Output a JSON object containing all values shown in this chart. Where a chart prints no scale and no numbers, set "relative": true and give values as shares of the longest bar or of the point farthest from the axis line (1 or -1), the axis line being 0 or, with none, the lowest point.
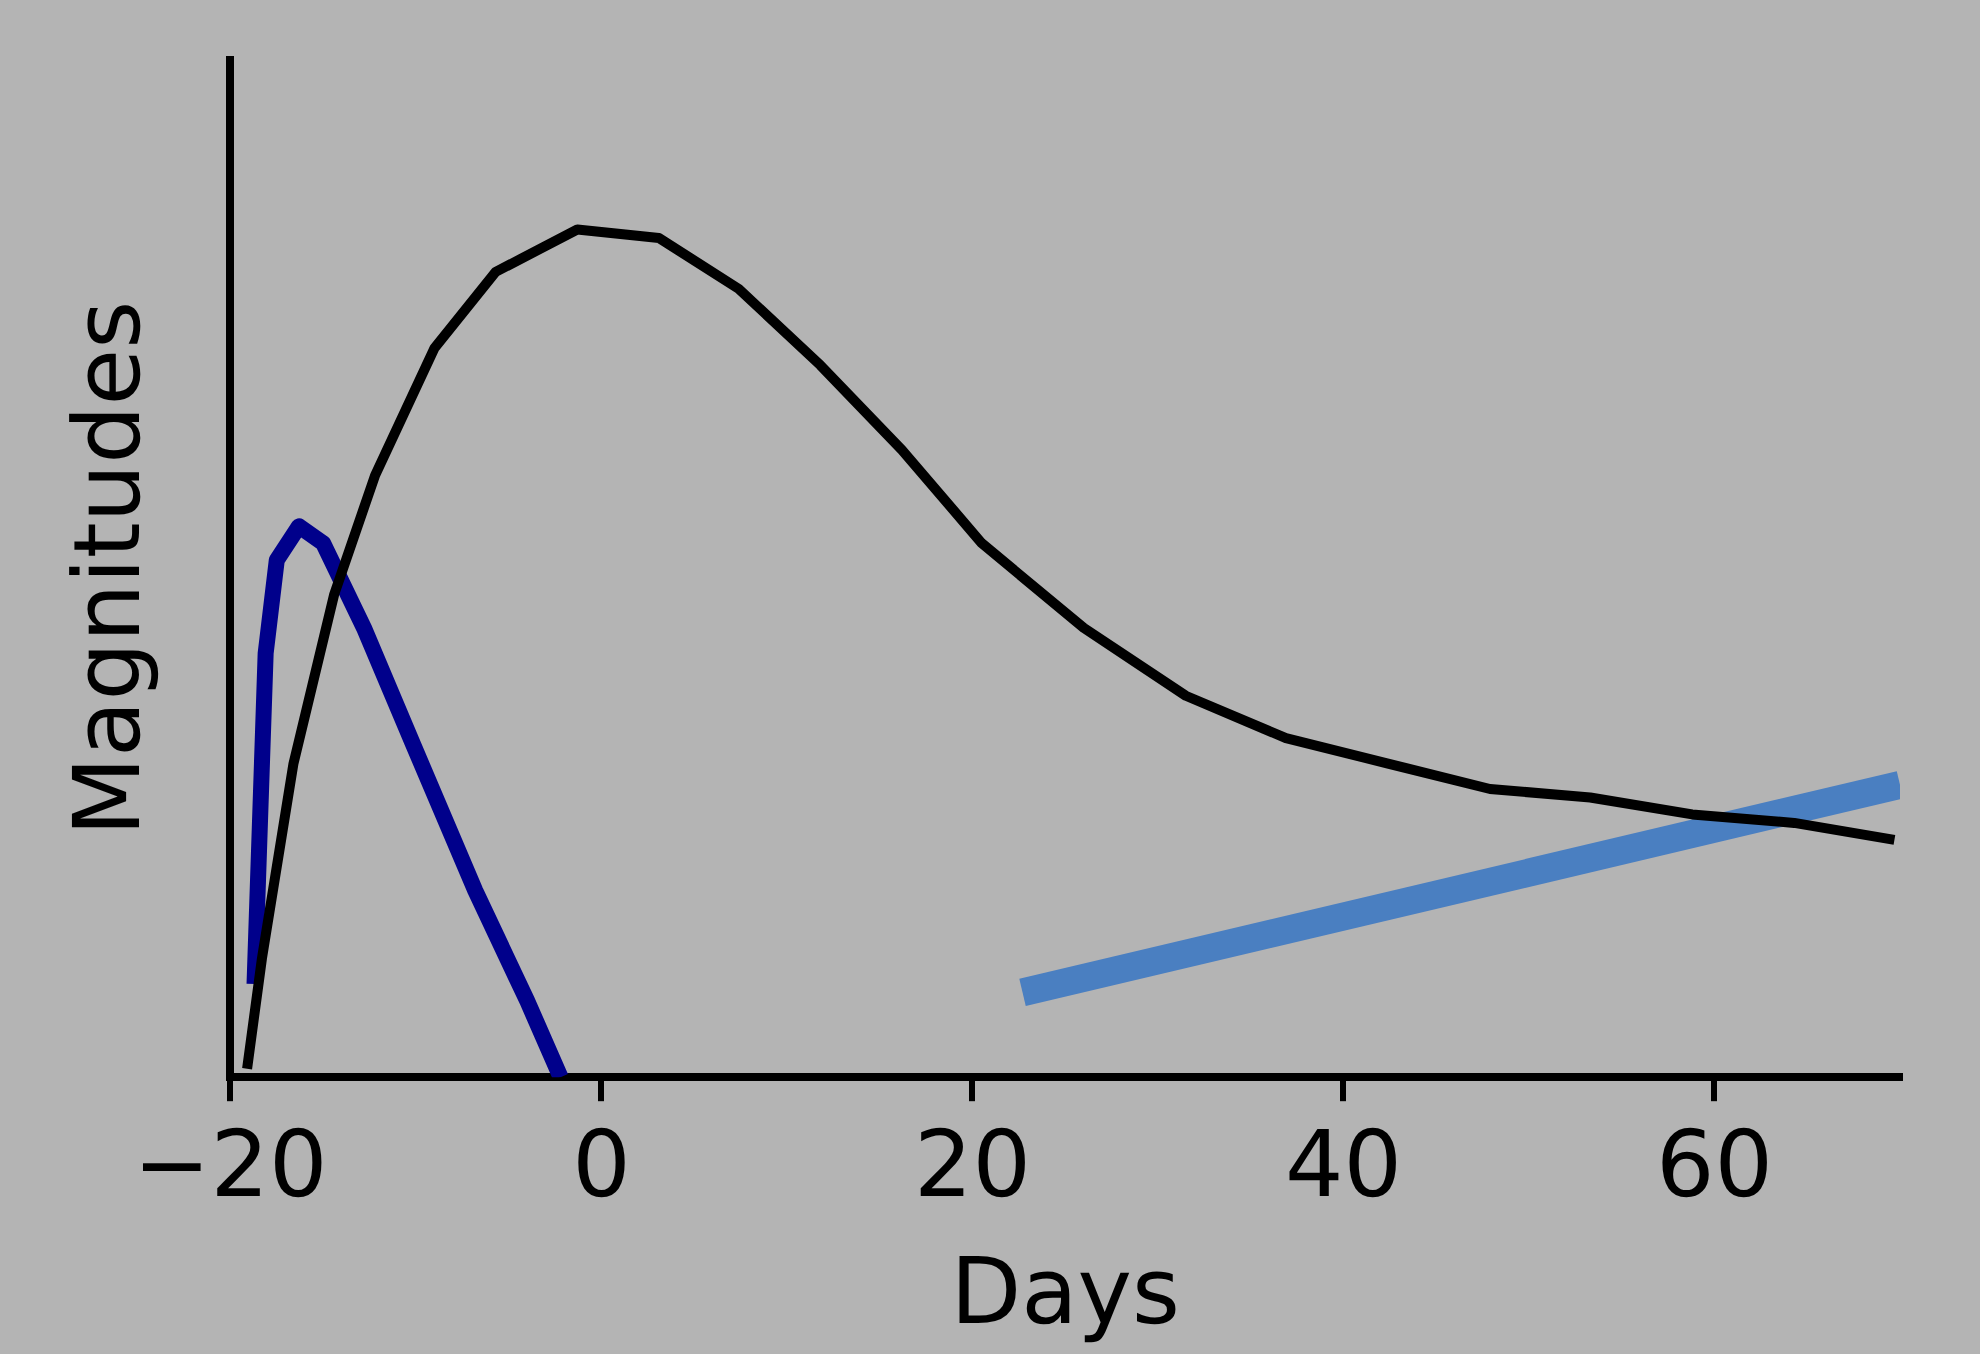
{
  "chart_data": {
    "type": "line",
    "xlabel": "Days",
    "ylabel": "Magnitudes",
    "relative": true,
    "xlim": [
      -20,
      70
    ],
    "xticks": [
      -20,
      0,
      20,
      40,
      60
    ],
    "tick_labels": "x",
    "grid": false,
    "legend": false,
    "marker": "none",
    "line_style": "solid",
    "series": [
      {
        "color": "#000000",
        "x": [
          -19.1,
          -18.3,
          -16.6,
          -14.4,
          -12.2,
          -9,
          -5.7,
          -1.3,
          3.1,
          7.4,
          11.8,
          16.2,
          20.5,
          26,
          31.5,
          36.9,
          42.4,
          47.9,
          53.3,
          58.8,
          64.3,
          69.7
        ],
        "values": [
          0.01,
          0.14,
          0.37,
          0.57,
          0.71,
          0.86,
          0.95,
          1,
          0.99,
          0.93,
          0.84,
          0.74,
          0.63,
          0.53,
          0.45,
          0.4,
          0.37,
          0.34,
          0.33,
          0.31,
          0.3,
          0.28
        ]
      },
      {
        "color": "#00008b",
        "x": [
          -18.7,
          -18.1,
          -17.5,
          -16.3,
          -15,
          -12.8,
          -10.1,
          -6.8,
          -4,
          -2.2
        ],
        "values": [
          0.11,
          0.5,
          0.61,
          0.65,
          0.63,
          0.53,
          0.39,
          0.22,
          0.09,
          0
        ]
      },
      {
        "color": "#4a7fc1",
        "x": [
          22.7,
          70
        ],
        "values": [
          0.1,
          0.345
        ]
      }
    ]
  }
}
